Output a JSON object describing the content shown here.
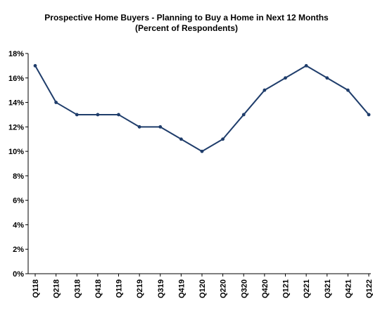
{
  "chart_data": {
    "type": "line",
    "title": "Prospective Home Buyers  - Planning to Buy a Home in Next 12 Months",
    "subtitle": "(Percent of Respondents)",
    "xlabel": "",
    "ylabel": "",
    "categories": [
      "Q118",
      "Q218",
      "Q318",
      "Q418",
      "Q119",
      "Q219",
      "Q319",
      "Q419",
      "Q120",
      "Q220",
      "Q320",
      "Q420",
      "Q121",
      "Q221",
      "Q321",
      "Q421",
      "Q122"
    ],
    "series": [
      {
        "values": [
          17,
          14,
          13,
          13,
          13,
          12,
          12,
          11,
          10,
          11,
          13,
          15,
          16,
          17,
          16,
          15,
          13
        ]
      }
    ],
    "ylim": [
      0,
      18
    ],
    "ytick_step": 2,
    "ytick_format": "percent",
    "grid": false,
    "legend": "none",
    "colors": {
      "line": "#1f3d6b",
      "axis": "#000000"
    }
  }
}
